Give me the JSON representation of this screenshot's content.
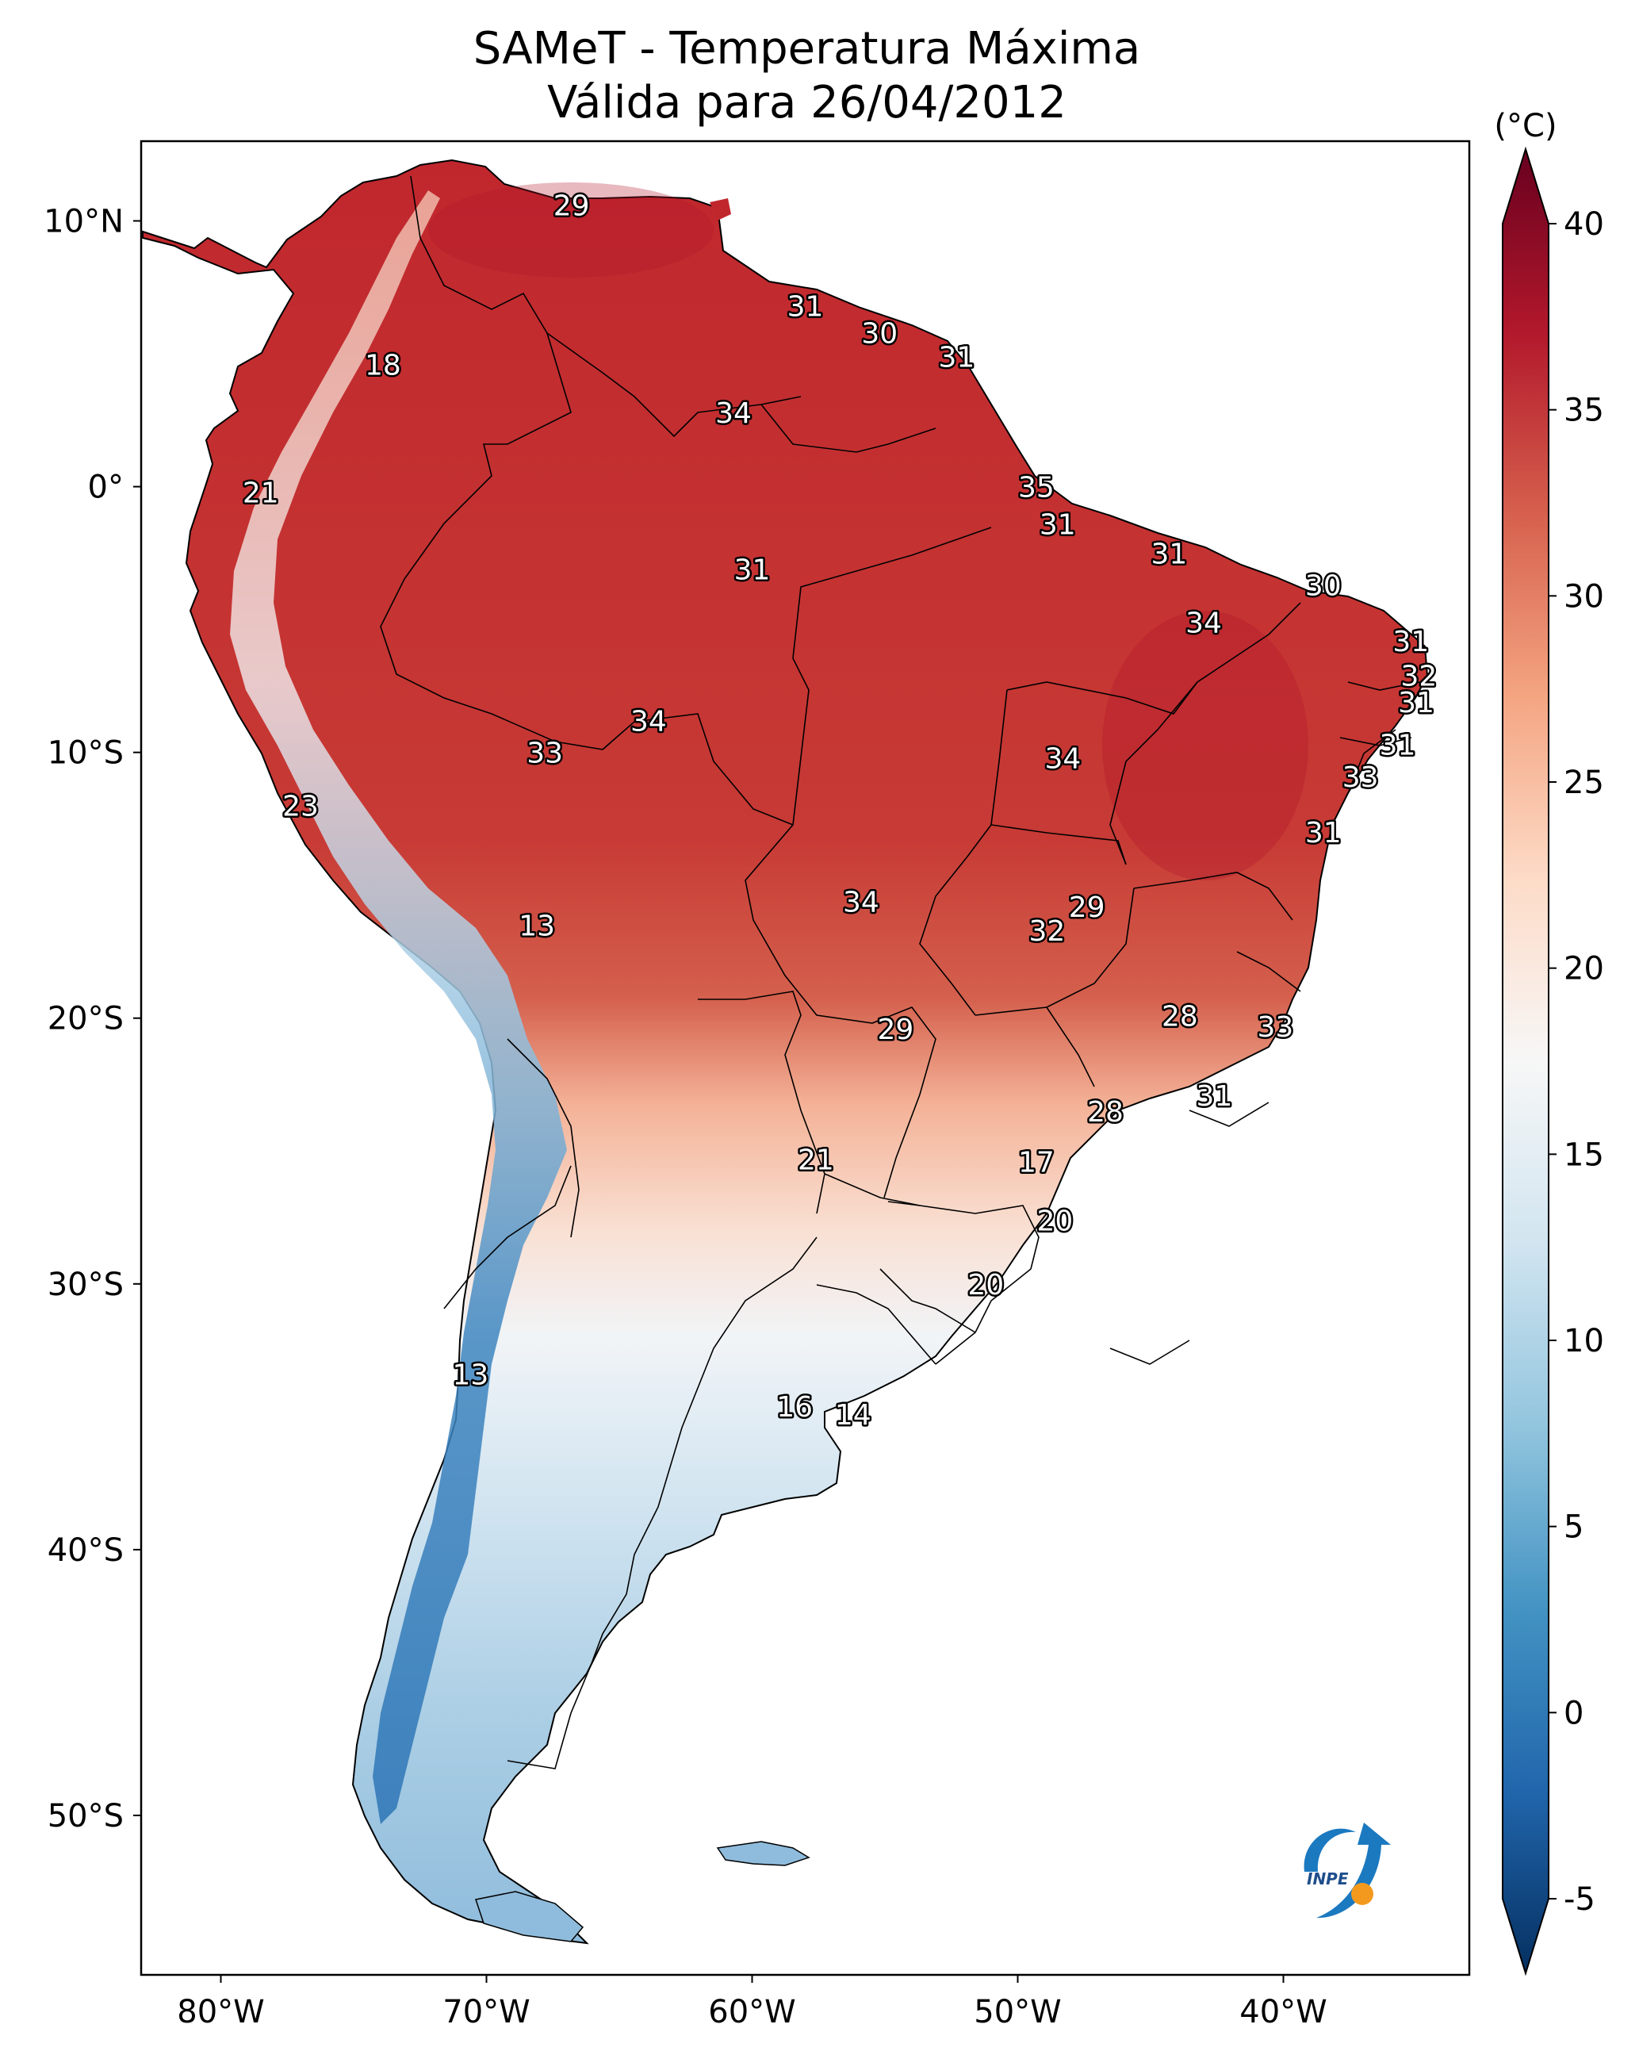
{
  "title": {
    "line1": "SAMeT - Temperatura Máxima",
    "line2": "Válida para 26/04/2012"
  },
  "axes": {
    "lon_labels": [
      "80°W",
      "70°W",
      "60°W",
      "50°W",
      "40°W"
    ],
    "lat_labels": [
      "10°N",
      "0°",
      "10°S",
      "20°S",
      "30°S",
      "40°S",
      "50°S"
    ],
    "lon_range": [
      -83,
      -33
    ],
    "lat_range": [
      -56,
      13
    ]
  },
  "colorbar": {
    "unit": "(°C)",
    "ticks": [
      "40",
      "35",
      "30",
      "25",
      "20",
      "15",
      "10",
      "5",
      "0",
      "-5"
    ],
    "range": [
      -5,
      40
    ],
    "colormap": "RdBu_r",
    "colors": [
      "#053061",
      "#2166ac",
      "#4393c3",
      "#92c5de",
      "#d1e5f0",
      "#f7f7f7",
      "#fddbc7",
      "#f4a582",
      "#d6604d",
      "#b2182b",
      "#67001f"
    ]
  },
  "temperature_labels": [
    {
      "text": "29",
      "lon": -66.8,
      "lat": 10.6
    },
    {
      "text": "18",
      "lon": -73.9,
      "lat": 4.6
    },
    {
      "text": "21",
      "lon": -78.5,
      "lat": -0.2
    },
    {
      "text": "31",
      "lon": -58.0,
      "lat": 6.8
    },
    {
      "text": "30",
      "lon": -55.2,
      "lat": 5.8
    },
    {
      "text": "31",
      "lon": -52.3,
      "lat": 4.9
    },
    {
      "text": "34",
      "lon": -60.7,
      "lat": 2.8
    },
    {
      "text": "35",
      "lon": -49.3,
      "lat": 0.0
    },
    {
      "text": "31",
      "lon": -48.5,
      "lat": -1.4
    },
    {
      "text": "31",
      "lon": -44.3,
      "lat": -2.5
    },
    {
      "text": "31",
      "lon": -60.0,
      "lat": -3.1
    },
    {
      "text": "30",
      "lon": -38.5,
      "lat": -3.7
    },
    {
      "text": "34",
      "lon": -43.0,
      "lat": -5.1
    },
    {
      "text": "31",
      "lon": -35.2,
      "lat": -5.8
    },
    {
      "text": "32",
      "lon": -34.9,
      "lat": -7.1
    },
    {
      "text": "31",
      "lon": -35.0,
      "lat": -8.1
    },
    {
      "text": "34",
      "lon": -63.9,
      "lat": -8.8
    },
    {
      "text": "33",
      "lon": -67.8,
      "lat": -10.0
    },
    {
      "text": "34",
      "lon": -48.3,
      "lat": -10.2
    },
    {
      "text": "31",
      "lon": -35.7,
      "lat": -9.7
    },
    {
      "text": "33",
      "lon": -37.1,
      "lat": -10.9
    },
    {
      "text": "23",
      "lon": -77.0,
      "lat": -12.0
    },
    {
      "text": "31",
      "lon": -38.5,
      "lat": -13.0
    },
    {
      "text": "34",
      "lon": -55.9,
      "lat": -15.6
    },
    {
      "text": "29",
      "lon": -47.4,
      "lat": -15.8
    },
    {
      "text": "32",
      "lon": -48.9,
      "lat": -16.7
    },
    {
      "text": "13",
      "lon": -68.1,
      "lat": -16.5
    },
    {
      "text": "28",
      "lon": -43.9,
      "lat": -19.9
    },
    {
      "text": "33",
      "lon": -40.3,
      "lat": -20.3
    },
    {
      "text": "29",
      "lon": -54.6,
      "lat": -20.4
    },
    {
      "text": "31",
      "lon": -42.6,
      "lat": -22.9
    },
    {
      "text": "28",
      "lon": -46.7,
      "lat": -23.5
    },
    {
      "text": "21",
      "lon": -57.6,
      "lat": -25.3
    },
    {
      "text": "17",
      "lon": -49.3,
      "lat": -25.4
    },
    {
      "text": "20",
      "lon": -48.6,
      "lat": -27.6
    },
    {
      "text": "20",
      "lon": -51.2,
      "lat": -30.0
    },
    {
      "text": "13",
      "lon": -70.6,
      "lat": -33.4
    },
    {
      "text": "16",
      "lon": -58.4,
      "lat": -34.6
    },
    {
      "text": "14",
      "lon": -56.2,
      "lat": -34.9
    }
  ],
  "logo": {
    "text": "INPE",
    "icon": "inpe-logo-icon"
  }
}
